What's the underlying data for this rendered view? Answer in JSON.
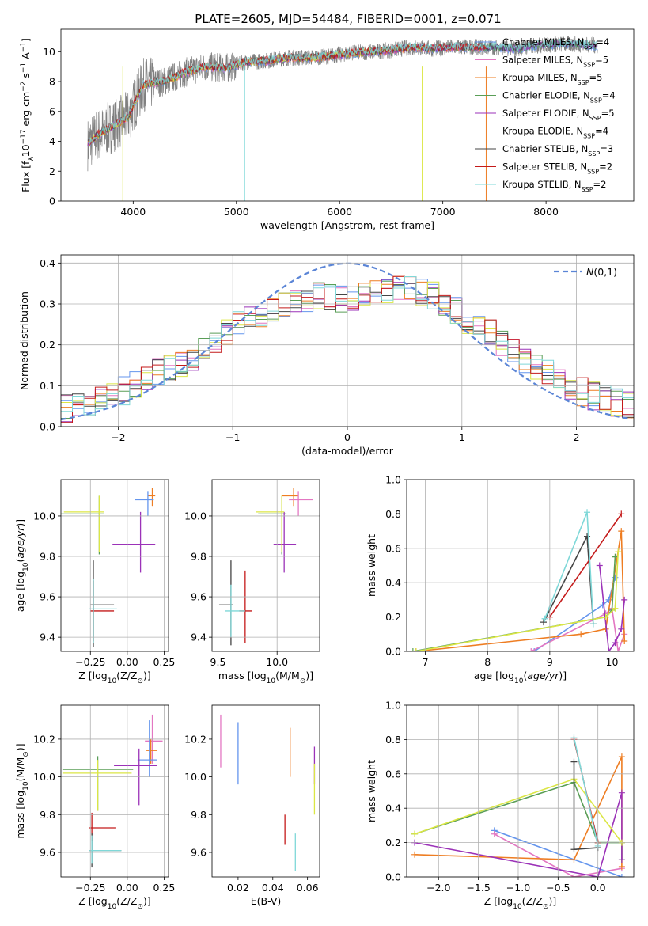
{
  "figure": {
    "title": "PLATE=2605, MJD=54484, FIBERID=0001, z=0.071"
  },
  "chart_data": [
    {
      "id": "spectrum",
      "type": "line",
      "title": "PLATE=2605, MJD=54484, FIBERID=0001, z=0.071",
      "xlabel": "wavelength [Angstrom, rest frame]",
      "ylabel": "Flux [f_λ10^-17 erg cm^-2 s^-1 A^-1]",
      "xlim": [
        3300,
        8850
      ],
      "ylim": [
        0,
        11.5
      ],
      "xticks": [
        4000,
        5000,
        6000,
        7000,
        8000
      ],
      "yticks": [
        0,
        2,
        4,
        6,
        8,
        10
      ],
      "grid": false,
      "legend_position": "top-right",
      "data": {
        "x": [
          3560,
          3650,
          3800,
          3950,
          4100,
          4300,
          4500,
          4700,
          4900,
          5100,
          5300,
          5500,
          5700,
          5900,
          6100,
          6300,
          6500,
          6700,
          6900,
          7100,
          7300,
          7500,
          7700,
          7900,
          8100,
          8300,
          8500
        ],
        "y": [
          3.8,
          4.4,
          5.0,
          5.6,
          7.8,
          8.0,
          8.6,
          9.0,
          8.9,
          9.3,
          9.4,
          9.6,
          9.6,
          9.7,
          9.9,
          10.0,
          10.1,
          10.3,
          10.2,
          10.3,
          10.3,
          10.3,
          10.2,
          10.4,
          10.5,
          10.5,
          10.4
        ]
      },
      "series": [
        {
          "name": "Chabrier MILES, N_SSP=4",
          "label_main": "Chabrier MILES, N",
          "label_sub": "SSP",
          "label_tail": "=4",
          "color": "#6495ed"
        },
        {
          "name": "Salpeter MILES, N_SSP=5",
          "label_main": "Salpeter MILES, N",
          "label_sub": "SSP",
          "label_tail": "=5",
          "color": "#e377c2"
        },
        {
          "name": "Kroupa MILES, N_SSP=5",
          "label_main": "Kroupa MILES, N",
          "label_sub": "SSP",
          "label_tail": "=5",
          "color": "#ee7d22"
        },
        {
          "name": "Chabrier ELODIE, N_SSP=4",
          "label_main": "Chabrier ELODIE, N",
          "label_sub": "SSP",
          "label_tail": "=4",
          "color": "#5a9e57"
        },
        {
          "name": "Salpeter ELODIE, N_SSP=5",
          "label_main": "Salpeter ELODIE, N",
          "label_sub": "SSP",
          "label_tail": "=5",
          "color": "#9b32b8"
        },
        {
          "name": "Kroupa ELODIE, N_SSP=4",
          "label_main": "Kroupa ELODIE, N",
          "label_sub": "SSP",
          "label_tail": "=4",
          "color": "#dbe645"
        },
        {
          "name": "Chabrier STELIB, N_SSP=3",
          "label_main": "Chabrier STELIB, N",
          "label_sub": "SSP",
          "label_tail": "=3",
          "color": "#444444"
        },
        {
          "name": "Salpeter STELIB, N_SSP=2",
          "label_main": "Salpeter STELIB, N",
          "label_sub": "SSP",
          "label_tail": "=2",
          "color": "#c41a1a"
        },
        {
          "name": "Kroupa STELIB, N_SSP=2",
          "label_main": "Kroupa STELIB, N",
          "label_sub": "SSP",
          "label_tail": "=2",
          "color": "#7fd8d8"
        }
      ]
    },
    {
      "id": "residuals",
      "type": "line",
      "xlabel": "(data-model)/error",
      "ylabel": "Normed distribution",
      "xlim": [
        -2.5,
        2.5
      ],
      "ylim": [
        0,
        0.42
      ],
      "xticks": [
        -2,
        -1,
        0,
        1,
        2
      ],
      "yticks": [
        0.0,
        0.1,
        0.2,
        0.3,
        0.4
      ],
      "grid": true,
      "legend_position": "top-right",
      "gaussian_label": "N(0,1)",
      "histogram_envelope": {
        "x": [
          -2.5,
          -2.2,
          -2.0,
          -1.8,
          -1.6,
          -1.4,
          -1.2,
          -1.0,
          -0.8,
          -0.6,
          -0.4,
          -0.2,
          0.0,
          0.2,
          0.4,
          0.6,
          0.8,
          1.0,
          1.2,
          1.4,
          1.6,
          1.8,
          2.0,
          2.2,
          2.5
        ],
        "y": [
          0.04,
          0.06,
          0.08,
          0.11,
          0.14,
          0.16,
          0.2,
          0.24,
          0.27,
          0.29,
          0.31,
          0.32,
          0.31,
          0.32,
          0.34,
          0.33,
          0.32,
          0.27,
          0.24,
          0.19,
          0.15,
          0.12,
          0.09,
          0.07,
          0.05
        ]
      }
    },
    {
      "id": "age-vs-Z",
      "type": "scatter",
      "xlabel": "Z [log10(Z/Z☉)]",
      "ylabel": "age [log10(age/yr)]",
      "xlim": [
        -0.45,
        0.28
      ],
      "ylim": [
        9.33,
        10.18
      ],
      "xticks": [
        -0.25,
        0.0,
        0.25
      ],
      "yticks": [
        9.4,
        9.6,
        9.8,
        10.0
      ],
      "grid": true,
      "points": [
        {
          "x": -0.19,
          "y": 10.01,
          "xerr": [
            0.26,
            0.03
          ],
          "yerr": [
            0.2,
            0.09
          ],
          "color": "#5a9e57"
        },
        {
          "x": 0.17,
          "y": 10.1,
          "xerr": [
            0.03,
            0.02
          ],
          "yerr": [
            0.05,
            0.04
          ],
          "color": "#ee7d22"
        },
        {
          "x": 0.14,
          "y": 10.08,
          "xerr": [
            0.09,
            0.04
          ],
          "yerr": [
            0.08,
            0.04
          ],
          "color": "#6495ed"
        },
        {
          "x": 0.09,
          "y": 9.86,
          "xerr": [
            0.19,
            0.1
          ],
          "yerr": [
            0.14,
            0.16
          ],
          "color": "#9b32b8"
        },
        {
          "x": -0.19,
          "y": 10.02,
          "xerr": [
            0.24,
            0.03
          ],
          "yerr": [
            0.2,
            0.08
          ],
          "color": "#dbe645"
        },
        {
          "x": -0.23,
          "y": 9.56,
          "xerr": [
            0.02,
            0.14
          ],
          "yerr": [
            0.21,
            0.22
          ],
          "color": "#444444"
        },
        {
          "x": -0.23,
          "y": 9.53,
          "xerr": [
            0.02,
            0.14
          ],
          "yerr": [
            0.15,
            0.15
          ],
          "color": "#c41a1a"
        },
        {
          "x": -0.23,
          "y": 9.54,
          "xerr": [
            0.03,
            0.16
          ],
          "yerr": [
            0.17,
            0.15
          ],
          "color": "#7fd8d8"
        }
      ]
    },
    {
      "id": "age-vs-mass",
      "type": "scatter",
      "xlabel": "mass [log10(M/M☉)]",
      "ylabel": "",
      "xlim": [
        9.45,
        10.36
      ],
      "ylim": [
        9.33,
        10.18
      ],
      "xticks": [
        9.5,
        10.0
      ],
      "yticks": [
        9.4,
        9.6,
        9.8,
        10.0
      ],
      "grid": true,
      "points": [
        {
          "x": 10.04,
          "y": 10.01,
          "xerr": [
            0.2,
            0.04
          ],
          "yerr": [
            0.2,
            0.09
          ],
          "color": "#5a9e57"
        },
        {
          "x": 10.14,
          "y": 10.1,
          "xerr": [
            0.1,
            0.04
          ],
          "yerr": [
            0.05,
            0.04
          ],
          "color": "#ee7d22"
        },
        {
          "x": 10.18,
          "y": 10.08,
          "xerr": [
            0.08,
            0.12
          ],
          "yerr": [
            0.08,
            0.04
          ],
          "color": "#e377c2"
        },
        {
          "x": 10.06,
          "y": 9.86,
          "xerr": [
            0.09,
            0.1
          ],
          "yerr": [
            0.14,
            0.16
          ],
          "color": "#9b32b8"
        },
        {
          "x": 10.04,
          "y": 10.02,
          "xerr": [
            0.22,
            0.02
          ],
          "yerr": [
            0.2,
            0.08
          ],
          "color": "#dbe645"
        },
        {
          "x": 9.61,
          "y": 9.56,
          "xerr": [
            0.1,
            0.02
          ],
          "yerr": [
            0.2,
            0.22
          ],
          "color": "#444444"
        },
        {
          "x": 9.73,
          "y": 9.53,
          "xerr": [
            0.05,
            0.06
          ],
          "yerr": [
            0.16,
            0.2
          ],
          "color": "#c41a1a"
        },
        {
          "x": 9.61,
          "y": 9.53,
          "xerr": [
            0.05,
            0.12
          ],
          "yerr": [
            0.13,
            0.13
          ],
          "color": "#7fd8d8"
        }
      ]
    },
    {
      "id": "weight-vs-age",
      "type": "line",
      "xlabel": "age [log10(age/yr)]",
      "ylabel": "mass weight",
      "xlim": [
        6.7,
        10.35
      ],
      "ylim": [
        0,
        1.0
      ],
      "xticks": [
        7,
        8,
        9,
        10
      ],
      "yticks": [
        0.0,
        0.2,
        0.4,
        0.6,
        0.8,
        1.0
      ],
      "grid": true,
      "series": [
        {
          "name": "",
          "color": "#6495ed",
          "x": [
            8.75,
            9.85,
            9.95,
            10.05
          ],
          "y": [
            0.0,
            0.27,
            0.3,
            0.43
          ]
        },
        {
          "name": "",
          "color": "#e377c2",
          "x": [
            8.7,
            9.9,
            10.0,
            10.1,
            10.2
          ],
          "y": [
            0.0,
            0.22,
            0.25,
            0.0,
            0.1
          ]
        },
        {
          "name": "",
          "color": "#ee7d22",
          "x": [
            6.85,
            9.5,
            9.9,
            10.15,
            10.2
          ],
          "y": [
            0.0,
            0.1,
            0.13,
            0.7,
            0.06
          ]
        },
        {
          "name": "",
          "color": "#5a9e57",
          "x": [
            6.8,
            9.9,
            10.0,
            10.05
          ],
          "y": [
            0.0,
            0.2,
            0.24,
            0.55
          ]
        },
        {
          "name": "",
          "color": "#9b32b8",
          "x": [
            9.8,
            9.95,
            10.05,
            10.15,
            10.2
          ],
          "y": [
            0.5,
            0.0,
            0.05,
            0.13,
            0.3
          ]
        },
        {
          "name": "",
          "color": "#dbe645",
          "x": [
            6.85,
            9.9,
            10.05,
            10.1
          ],
          "y": [
            0.0,
            0.2,
            0.25,
            0.58
          ]
        },
        {
          "name": "",
          "color": "#444444",
          "x": [
            8.9,
            9.6,
            9.7
          ],
          "y": [
            0.17,
            0.67,
            0.16
          ]
        },
        {
          "name": "",
          "color": "#c41a1a",
          "x": [
            9.0,
            10.15
          ],
          "y": [
            0.2,
            0.8
          ]
        },
        {
          "name": "",
          "color": "#7fd8d8",
          "x": [
            8.92,
            9.6,
            9.7
          ],
          "y": [
            0.19,
            0.81,
            0.16
          ]
        }
      ]
    },
    {
      "id": "mass-vs-Z",
      "type": "scatter",
      "xlabel": "Z [log10(Z/Z☉)]",
      "ylabel": "mass [log10(M/M☉)]",
      "xlim": [
        -0.45,
        0.28
      ],
      "ylim": [
        9.47,
        10.38
      ],
      "xticks": [
        -0.25,
        0.0,
        0.25
      ],
      "yticks": [
        9.6,
        9.8,
        10.0,
        10.2
      ],
      "grid": true,
      "points": [
        {
          "x": 0.17,
          "y": 10.19,
          "xerr": [
            0.05,
            0.07
          ],
          "yerr": [
            0.12,
            0.14
          ],
          "color": "#e377c2"
        },
        {
          "x": 0.16,
          "y": 10.14,
          "xerr": [
            0.03,
            0.04
          ],
          "yerr": [
            0.07,
            0.06
          ],
          "color": "#ee7d22"
        },
        {
          "x": 0.15,
          "y": 10.09,
          "xerr": [
            0.08,
            0.05
          ],
          "yerr": [
            0.09,
            0.21
          ],
          "color": "#6495ed"
        },
        {
          "x": 0.08,
          "y": 10.06,
          "xerr": [
            0.17,
            0.12
          ],
          "yerr": [
            0.21,
            0.09
          ],
          "color": "#9b32b8"
        },
        {
          "x": -0.2,
          "y": 10.04,
          "xerr": [
            0.24,
            0.24
          ],
          "yerr": [
            0.22,
            0.07
          ],
          "color": "#5a9e57"
        },
        {
          "x": -0.2,
          "y": 10.02,
          "xerr": [
            0.24,
            0.23
          ],
          "yerr": [
            0.2,
            0.07
          ],
          "color": "#dbe645"
        },
        {
          "x": -0.24,
          "y": 9.73,
          "xerr": [
            0.02,
            0.16
          ],
          "yerr": [
            0.07,
            0.08
          ],
          "color": "#c41a1a"
        },
        {
          "x": -0.24,
          "y": 9.61,
          "xerr": [
            0.02,
            0.2
          ],
          "yerr": [
            0.09,
            0.09
          ],
          "color": "#444444"
        },
        {
          "x": -0.24,
          "y": 9.61,
          "xerr": [
            0.02,
            0.2
          ],
          "yerr": [
            0.07,
            0.08
          ],
          "color": "#7fd8d8"
        }
      ]
    },
    {
      "id": "mass-vs-ebv",
      "type": "scatter",
      "xlabel": "E(B-V)",
      "ylabel": "",
      "xlim": [
        0.005,
        0.067
      ],
      "ylim": [
        9.47,
        10.38
      ],
      "xticks": [
        0.02,
        0.04,
        0.06
      ],
      "yticks": [
        9.6,
        9.8,
        10.0,
        10.2
      ],
      "grid": false,
      "points": [
        {
          "x": 0.01,
          "y": 10.19,
          "yerr": [
            0.14,
            0.14
          ],
          "color": "#e377c2"
        },
        {
          "x": 0.02,
          "y": 10.12,
          "yerr": [
            0.16,
            0.17
          ],
          "color": "#6495ed"
        },
        {
          "x": 0.05,
          "y": 10.1,
          "yerr": [
            0.1,
            0.16
          ],
          "color": "#ee7d22"
        },
        {
          "x": 0.047,
          "y": 9.72,
          "yerr": [
            0.08,
            0.08
          ],
          "color": "#c41a1a"
        },
        {
          "x": 0.053,
          "y": 9.6,
          "yerr": [
            0.1,
            0.1
          ],
          "color": "#7fd8d8"
        },
        {
          "x": 0.064,
          "y": 10.05,
          "yerr": [
            0.09,
            0.11
          ],
          "color": "#9b32b8"
        },
        {
          "x": 0.064,
          "y": 9.97,
          "yerr": [
            0.17,
            0.1
          ],
          "color": "#dbe645"
        }
      ]
    },
    {
      "id": "weight-vs-Z",
      "type": "line",
      "xlabel": "Z [log10(Z/Z☉)]",
      "ylabel": "mass weight",
      "xlim": [
        -2.4,
        0.45
      ],
      "ylim": [
        0,
        1.0
      ],
      "xticks": [
        -2.0,
        -1.5,
        -1.0,
        -0.5,
        0.0
      ],
      "yticks": [
        0.0,
        0.2,
        0.4,
        0.6,
        0.8,
        1.0
      ],
      "grid": true,
      "series": [
        {
          "name": "",
          "color": "#6495ed",
          "x": [
            -1.3,
            0.3
          ],
          "y": [
            0.27,
            0.0
          ]
        },
        {
          "name": "",
          "color": "#e377c2",
          "x": [
            -1.3,
            -0.3,
            0.3
          ],
          "y": [
            0.25,
            0.0,
            0.05
          ]
        },
        {
          "name": "",
          "color": "#ee7d22",
          "x": [
            -2.3,
            -0.3,
            0.3,
            0.3
          ],
          "y": [
            0.13,
            0.1,
            0.7,
            0.06
          ]
        },
        {
          "name": "",
          "color": "#5a9e57",
          "x": [
            -2.3,
            -0.3,
            0.0,
            0.3,
            0.3
          ],
          "y": [
            0.25,
            0.55,
            0.2,
            0.2,
            0.1
          ]
        },
        {
          "name": "",
          "color": "#9b32b8",
          "x": [
            -2.3,
            0.0,
            0.3,
            0.3
          ],
          "y": [
            0.2,
            0.0,
            0.49,
            0.1
          ]
        },
        {
          "name": "",
          "color": "#dbe645",
          "x": [
            -2.3,
            -0.3,
            0.3
          ],
          "y": [
            0.25,
            0.57,
            0.2
          ]
        },
        {
          "name": "",
          "color": "#444444",
          "x": [
            -0.3,
            -0.3,
            0.0
          ],
          "y": [
            0.67,
            0.16,
            0.17
          ]
        },
        {
          "name": "",
          "color": "#c41a1a",
          "x": [
            -0.3,
            0.0
          ],
          "y": [
            0.8,
            0.2
          ]
        },
        {
          "name": "",
          "color": "#7fd8d8",
          "x": [
            -0.3,
            0.0
          ],
          "y": [
            0.81,
            0.18
          ]
        }
      ]
    }
  ]
}
